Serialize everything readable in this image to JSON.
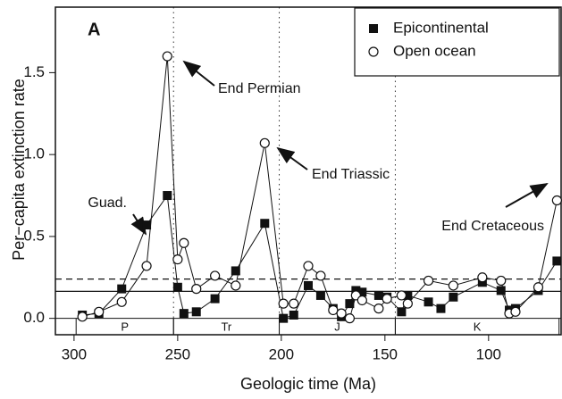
{
  "chart_data": {
    "type": "line",
    "panel_label": "A",
    "xlabel": "Geologic time (Ma)",
    "ylabel": "Per−capita extinction rate",
    "xlim": [
      309,
      65
    ],
    "ylim": [
      -0.1,
      1.9
    ],
    "xticks": [
      300,
      250,
      200,
      150,
      100
    ],
    "yticks": [
      {
        "value": 0,
        "label": "0.0"
      },
      0.5,
      {
        "value": 1,
        "label": "1.0"
      },
      1.5
    ],
    "legend": "top-right",
    "series": [
      {
        "name": "Epicontinental",
        "marker": "square",
        "color": "#111111",
        "x": [
          296,
          288,
          277,
          265,
          255,
          250,
          247,
          241,
          232,
          222,
          208,
          199,
          194,
          187,
          181,
          175,
          171,
          167,
          164,
          161,
          153,
          149,
          142,
          139,
          129,
          123,
          117,
          103,
          94,
          90,
          87,
          76,
          67
        ],
        "values": [
          0.02,
          0.03,
          0.18,
          0.57,
          0.75,
          0.19,
          0.03,
          0.04,
          0.12,
          0.29,
          0.58,
          0.0,
          0.02,
          0.2,
          0.14,
          0.06,
          0.01,
          0.09,
          0.17,
          0.16,
          0.14,
          0.13,
          0.04,
          0.14,
          0.1,
          0.06,
          0.13,
          0.22,
          0.17,
          0.05,
          0.06,
          0.17,
          0.35
        ]
      },
      {
        "name": "Open ocean",
        "marker": "circle",
        "color": "#111111",
        "x": [
          296,
          288,
          277,
          265,
          255,
          250,
          247,
          241,
          232,
          222,
          208,
          199,
          194,
          187,
          181,
          175,
          171,
          167,
          164,
          161,
          153,
          149,
          142,
          139,
          129,
          117,
          103,
          94,
          90,
          87,
          76,
          67
        ],
        "values": [
          0.01,
          0.04,
          0.1,
          0.32,
          1.6,
          0.36,
          0.46,
          0.18,
          0.26,
          0.2,
          1.07,
          0.09,
          0.09,
          0.32,
          0.26,
          0.05,
          0.03,
          0.0,
          0.14,
          0.11,
          0.06,
          0.12,
          0.14,
          0.09,
          0.23,
          0.2,
          0.25,
          0.23,
          0.03,
          0.04,
          0.19,
          0.72
        ]
      }
    ],
    "hlines": [
      {
        "value": 0.24,
        "style": "dashed"
      },
      {
        "value": 0.165,
        "style": "solid"
      }
    ],
    "vlines": [
      252,
      201,
      145
    ],
    "periods": [
      {
        "label": "P",
        "start": 299,
        "end": 252
      },
      {
        "label": "Tr",
        "start": 252,
        "end": 201
      },
      {
        "label": "J",
        "start": 201,
        "end": 145
      },
      {
        "label": "K",
        "start": 145,
        "end": 66
      }
    ],
    "annotations": [
      "End Permian",
      "End Triassic",
      "Guad.",
      "End Cretaceous"
    ]
  }
}
